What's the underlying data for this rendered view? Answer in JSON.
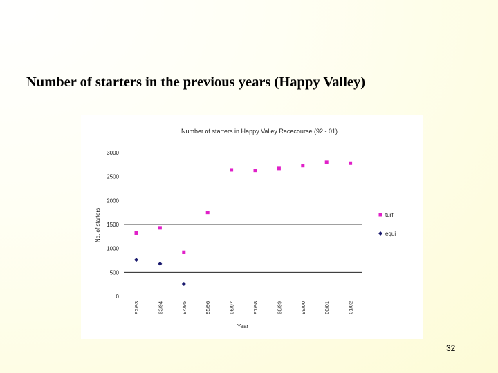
{
  "slide": {
    "title": "Number of starters in the previous years (Happy Valley)",
    "page_number": "32"
  },
  "colors": {
    "turf": "#e020c8",
    "equi": "#1a1a6e",
    "gridline": "#000000",
    "text": "#222222"
  },
  "chart_data": {
    "type": "scatter",
    "title": "Number of starters in Happy Valley Racecourse (92 - 01)",
    "xlabel": "Year",
    "ylabel": "No. of starters",
    "categories": [
      "92/93",
      "93/94",
      "94/95",
      "95/96",
      "96/97",
      "97/98",
      "98/99",
      "99/00",
      "00/01",
      "01/02"
    ],
    "ylim": [
      0,
      3000
    ],
    "yticks": [
      0,
      500,
      1000,
      1500,
      2000,
      2500,
      3000
    ],
    "ytick_labels": [
      "0",
      "500",
      "1000",
      "1500",
      "2000",
      "2500",
      "3000"
    ],
    "gridlines_at": [
      500,
      1500
    ],
    "legend_position": "right",
    "series": [
      {
        "name": "turf",
        "marker": "square",
        "values": [
          1320,
          1430,
          920,
          1750,
          2640,
          2630,
          2670,
          2730,
          2800,
          2780
        ]
      },
      {
        "name": "equi",
        "marker": "diamond",
        "values": [
          760,
          680,
          260,
          null,
          null,
          null,
          null,
          null,
          null,
          null
        ]
      }
    ]
  }
}
